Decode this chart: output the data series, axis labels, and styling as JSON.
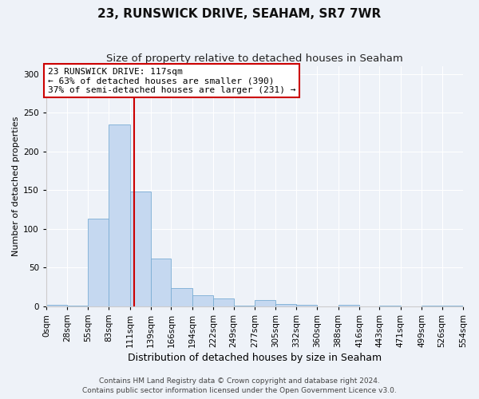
{
  "title": "23, RUNSWICK DRIVE, SEAHAM, SR7 7WR",
  "subtitle": "Size of property relative to detached houses in Seaham",
  "xlabel": "Distribution of detached houses by size in Seaham",
  "ylabel": "Number of detached properties",
  "bin_edges": [
    0,
    28,
    55,
    83,
    111,
    139,
    166,
    194,
    222,
    249,
    277,
    305,
    332,
    360,
    388,
    416,
    443,
    471,
    499,
    526,
    554
  ],
  "bin_counts": [
    2,
    1,
    113,
    235,
    148,
    62,
    24,
    14,
    10,
    1,
    8,
    3,
    2,
    0,
    2,
    0,
    1,
    0,
    1,
    1
  ],
  "tick_labels": [
    "0sqm",
    "28sqm",
    "55sqm",
    "83sqm",
    "111sqm",
    "139sqm",
    "166sqm",
    "194sqm",
    "222sqm",
    "249sqm",
    "277sqm",
    "305sqm",
    "332sqm",
    "360sqm",
    "388sqm",
    "416sqm",
    "443sqm",
    "471sqm",
    "499sqm",
    "526sqm",
    "554sqm"
  ],
  "bar_color": "#c5d8f0",
  "bar_edge_color": "#7aadd4",
  "vline_x": 117,
  "vline_color": "#cc0000",
  "ylim": [
    0,
    310
  ],
  "yticks": [
    0,
    50,
    100,
    150,
    200,
    250,
    300
  ],
  "annotation_text": "23 RUNSWICK DRIVE: 117sqm\n← 63% of detached houses are smaller (390)\n37% of semi-detached houses are larger (231) →",
  "annotation_box_color": "#ffffff",
  "annotation_box_edge": "#cc0000",
  "footer1": "Contains HM Land Registry data © Crown copyright and database right 2024.",
  "footer2": "Contains public sector information licensed under the Open Government Licence v3.0.",
  "background_color": "#eef2f8",
  "plot_bg_color": "#eef2f8",
  "grid_color": "#ffffff",
  "title_fontsize": 11,
  "subtitle_fontsize": 9.5,
  "xlabel_fontsize": 9,
  "ylabel_fontsize": 8,
  "tick_fontsize": 7.5,
  "annotation_fontsize": 8,
  "footer_fontsize": 6.5
}
